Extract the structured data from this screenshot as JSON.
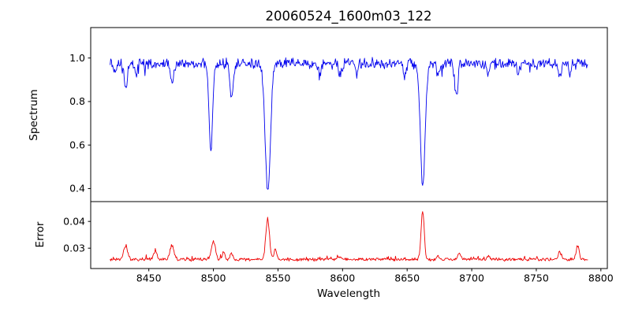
{
  "figure": {
    "background": "#ffffff"
  },
  "chart_data": {
    "type": "line",
    "title": "20060524_1600m03_122",
    "xlabel": "Wavelength",
    "grid": false,
    "xlim": [
      8405,
      8805
    ],
    "xticks": [
      8450,
      8500,
      8550,
      8600,
      8650,
      8700,
      8750,
      8800
    ],
    "x_start": 8420,
    "x_end": 8790,
    "x_step": 0.5,
    "panels": [
      {
        "name": "spectrum",
        "ylabel": "Spectrum",
        "color": "#0000ee",
        "ylim": [
          0.34,
          1.14
        ],
        "yticks": [
          0.4,
          0.6,
          0.8,
          1.0
        ],
        "ytick_labels": [
          "0.4",
          "0.6",
          "0.8",
          "1.0"
        ],
        "continuum": 0.975,
        "noise_amplitude": 0.016,
        "absorption_lines": [
          {
            "center": 8424.0,
            "depth": 0.06,
            "sigma": 1.0
          },
          {
            "center": 8432.0,
            "depth": 0.11,
            "sigma": 1.3
          },
          {
            "center": 8440.0,
            "depth": 0.05,
            "sigma": 1.0
          },
          {
            "center": 8468.0,
            "depth": 0.09,
            "sigma": 1.3
          },
          {
            "center": 8498.0,
            "depth": 0.4,
            "sigma": 1.4
          },
          {
            "center": 8514.0,
            "depth": 0.16,
            "sigma": 1.3
          },
          {
            "center": 8542.1,
            "depth": 0.6,
            "sigma": 2.0
          },
          {
            "center": 8582.0,
            "depth": 0.05,
            "sigma": 1.0
          },
          {
            "center": 8598.0,
            "depth": 0.05,
            "sigma": 1.0
          },
          {
            "center": 8611.0,
            "depth": 0.04,
            "sigma": 1.0
          },
          {
            "center": 8648.0,
            "depth": 0.05,
            "sigma": 1.0
          },
          {
            "center": 8662.1,
            "depth": 0.56,
            "sigma": 1.8
          },
          {
            "center": 8674.0,
            "depth": 0.06,
            "sigma": 1.0
          },
          {
            "center": 8688.0,
            "depth": 0.14,
            "sigma": 1.3
          },
          {
            "center": 8713.0,
            "depth": 0.05,
            "sigma": 1.0
          },
          {
            "center": 8736.0,
            "depth": 0.05,
            "sigma": 1.0
          },
          {
            "center": 8768.0,
            "depth": 0.07,
            "sigma": 1.1
          },
          {
            "center": 8776.0,
            "depth": 0.05,
            "sigma": 1.0
          }
        ]
      },
      {
        "name": "error",
        "ylabel": "Error",
        "color": "#ee0000",
        "ylim": [
          0.0224,
          0.0474
        ],
        "yticks": [
          0.03,
          0.04
        ],
        "ytick_labels": [
          "0.03",
          "0.04"
        ],
        "baseline": 0.0258,
        "noise_amplitude": 0.0004,
        "peaks": [
          {
            "center": 8432.0,
            "height": 0.005,
            "sigma": 1.5
          },
          {
            "center": 8455.0,
            "height": 0.003,
            "sigma": 1.2
          },
          {
            "center": 8468.0,
            "height": 0.0048,
            "sigma": 1.5
          },
          {
            "center": 8500.0,
            "height": 0.0068,
            "sigma": 1.5
          },
          {
            "center": 8508.0,
            "height": 0.0028,
            "sigma": 1.0
          },
          {
            "center": 8514.0,
            "height": 0.0024,
            "sigma": 1.0
          },
          {
            "center": 8542.0,
            "height": 0.0152,
            "sigma": 1.4
          },
          {
            "center": 8548.0,
            "height": 0.0038,
            "sigma": 1.0
          },
          {
            "center": 8598.0,
            "height": 0.0012,
            "sigma": 1.0
          },
          {
            "center": 8662.0,
            "height": 0.0182,
            "sigma": 1.2
          },
          {
            "center": 8674.0,
            "height": 0.0015,
            "sigma": 1.0
          },
          {
            "center": 8690.0,
            "height": 0.0022,
            "sigma": 1.2
          },
          {
            "center": 8713.0,
            "height": 0.0012,
            "sigma": 1.0
          },
          {
            "center": 8768.0,
            "height": 0.0028,
            "sigma": 1.2
          },
          {
            "center": 8782.0,
            "height": 0.0048,
            "sigma": 1.2
          }
        ]
      }
    ]
  }
}
